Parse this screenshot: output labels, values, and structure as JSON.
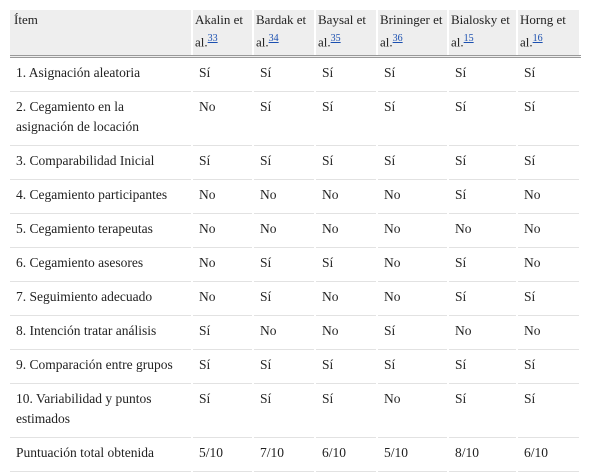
{
  "table": {
    "header": {
      "item": "Ítem",
      "columns": [
        {
          "name": "Akalin et al.",
          "ref": "33"
        },
        {
          "name": "Bardak et al.",
          "ref": "34"
        },
        {
          "name": "Baysal et al.",
          "ref": "35"
        },
        {
          "name": "Brininger et al.",
          "ref": "36"
        },
        {
          "name": "Bialosky et al.",
          "ref": "15"
        },
        {
          "name": "Horng et al.",
          "ref": "16"
        }
      ]
    },
    "rows": [
      [
        "1. Asignación aleatoria",
        "Sí",
        "Sí",
        "Sí",
        "Sí",
        "Sí",
        "Sí"
      ],
      [
        "2. Cegamiento en la asignación de locación",
        "No",
        "Sí",
        "Sí",
        "Sí",
        "Sí",
        "Sí"
      ],
      [
        "3. Comparabilidad Inicial",
        "Sí",
        "Sí",
        "Sí",
        "Sí",
        "Sí",
        "Sí"
      ],
      [
        "4. Cegamiento participantes",
        "No",
        "No",
        "No",
        "No",
        "Sí",
        "No"
      ],
      [
        "5. Cegamiento terapeutas",
        "No",
        "No",
        "No",
        "No",
        "No",
        "No"
      ],
      [
        "6. Cegamiento asesores",
        "No",
        "Sí",
        "Sí",
        "No",
        "Sí",
        "No"
      ],
      [
        "7. Seguimiento adecuado",
        "No",
        "Sí",
        "No",
        "No",
        "Sí",
        "Sí"
      ],
      [
        "8. Intención tratar análisis",
        "Sí",
        "No",
        "No",
        "Sí",
        "No",
        "No"
      ],
      [
        "9. Comparación entre grupos",
        "Sí",
        "Sí",
        "Sí",
        "Sí",
        "Sí",
        "Sí"
      ],
      [
        "10. Variabilidad y puntos estimados",
        "Sí",
        "Sí",
        "Sí",
        "No",
        "Sí",
        "Sí"
      ],
      [
        "Puntuación total obtenida",
        "5/10",
        "7/10",
        "6/10",
        "5/10",
        "8/10",
        "6/10"
      ]
    ]
  }
}
